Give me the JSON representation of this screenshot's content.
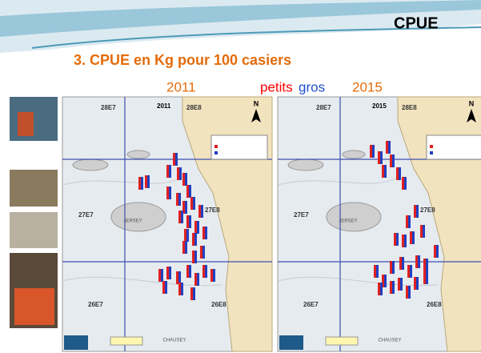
{
  "header": {
    "title": "CPUE"
  },
  "heading": "3. CPUE en Kg pour 100 casiers",
  "labels": {
    "year_left": "2011",
    "small": "petits",
    "large": "gros",
    "year_right": "2015"
  },
  "maps": [
    {
      "year": "2011",
      "north": "N",
      "zones": [
        "28E7",
        "28E8",
        "27E7",
        "27E8",
        "26E7",
        "26E8"
      ],
      "places": [
        "JERSEY",
        "CHAUSEY"
      ]
    },
    {
      "year": "2015",
      "north": "N",
      "zones": [
        "28E7",
        "28E8",
        "27E7",
        "27E8",
        "26E7",
        "26E8"
      ],
      "places": [
        "JERSEY",
        "CHAUSEY"
      ]
    }
  ]
}
